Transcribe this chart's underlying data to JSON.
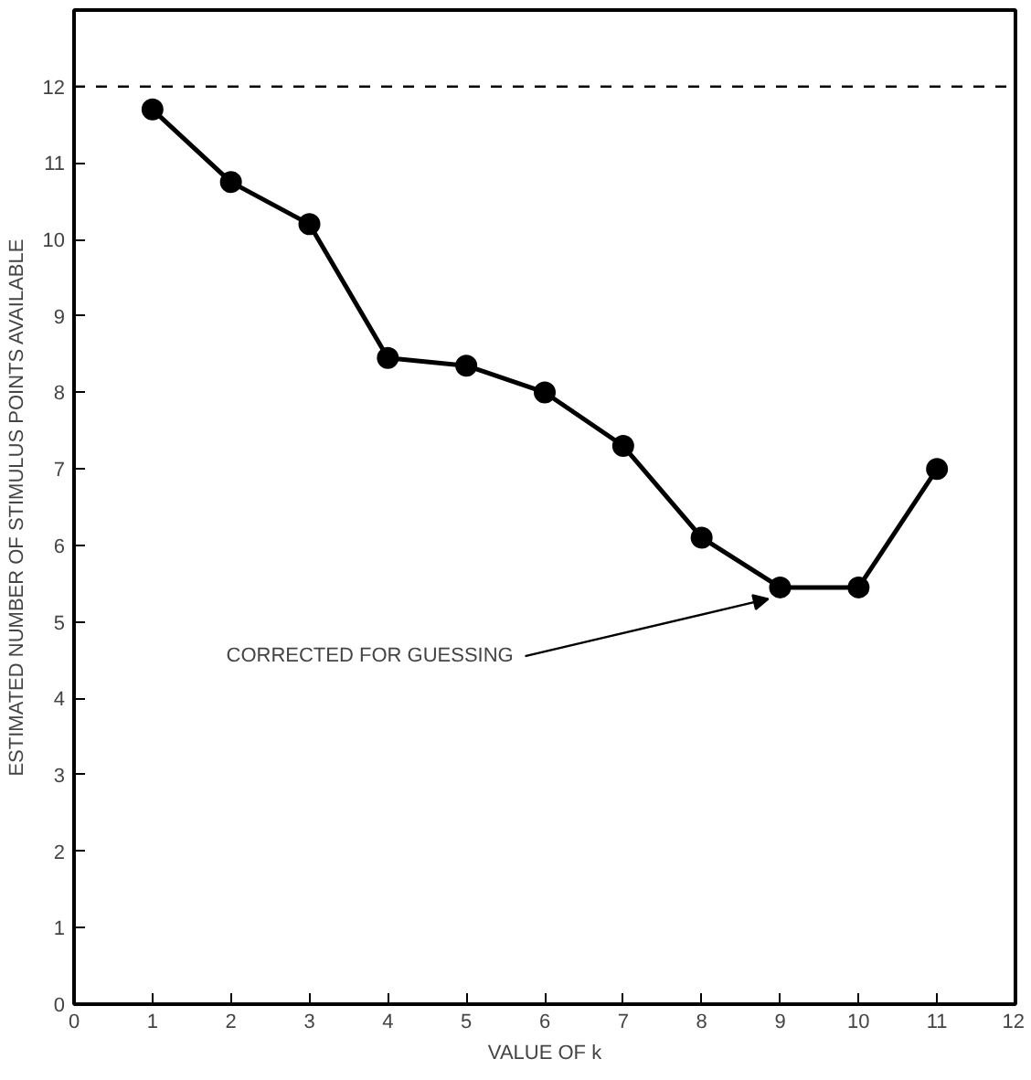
{
  "chart_data": {
    "type": "line",
    "xlabel": "VALUE OF k",
    "ylabel": "ESTIMATED NUMBER OF STIMULUS POINTS AVAILABLE",
    "x": [
      1,
      2,
      3,
      4,
      5,
      6,
      7,
      8,
      9,
      10,
      11
    ],
    "values": [
      11.7,
      10.75,
      10.2,
      8.45,
      8.35,
      8.0,
      7.3,
      6.1,
      5.45,
      5.45,
      7.0
    ],
    "color": "#000000",
    "marker": "circle",
    "line_style": "solid",
    "grid": false,
    "xlim": [
      0,
      12
    ],
    "ylim": [
      0,
      13
    ],
    "xticks": [
      0,
      1,
      2,
      3,
      4,
      5,
      6,
      7,
      8,
      9,
      10,
      11,
      12
    ],
    "yticks": [
      0,
      1,
      2,
      3,
      4,
      5,
      6,
      7,
      8,
      9,
      10,
      11,
      12
    ],
    "ref_lines": [
      {
        "axis": "y",
        "value": 12,
        "line_style": "dashed",
        "color": "#000000"
      }
    ],
    "annotations": [
      {
        "text": "CORRECTED FOR GUESSING",
        "x": 9,
        "y": 5.45
      }
    ]
  }
}
